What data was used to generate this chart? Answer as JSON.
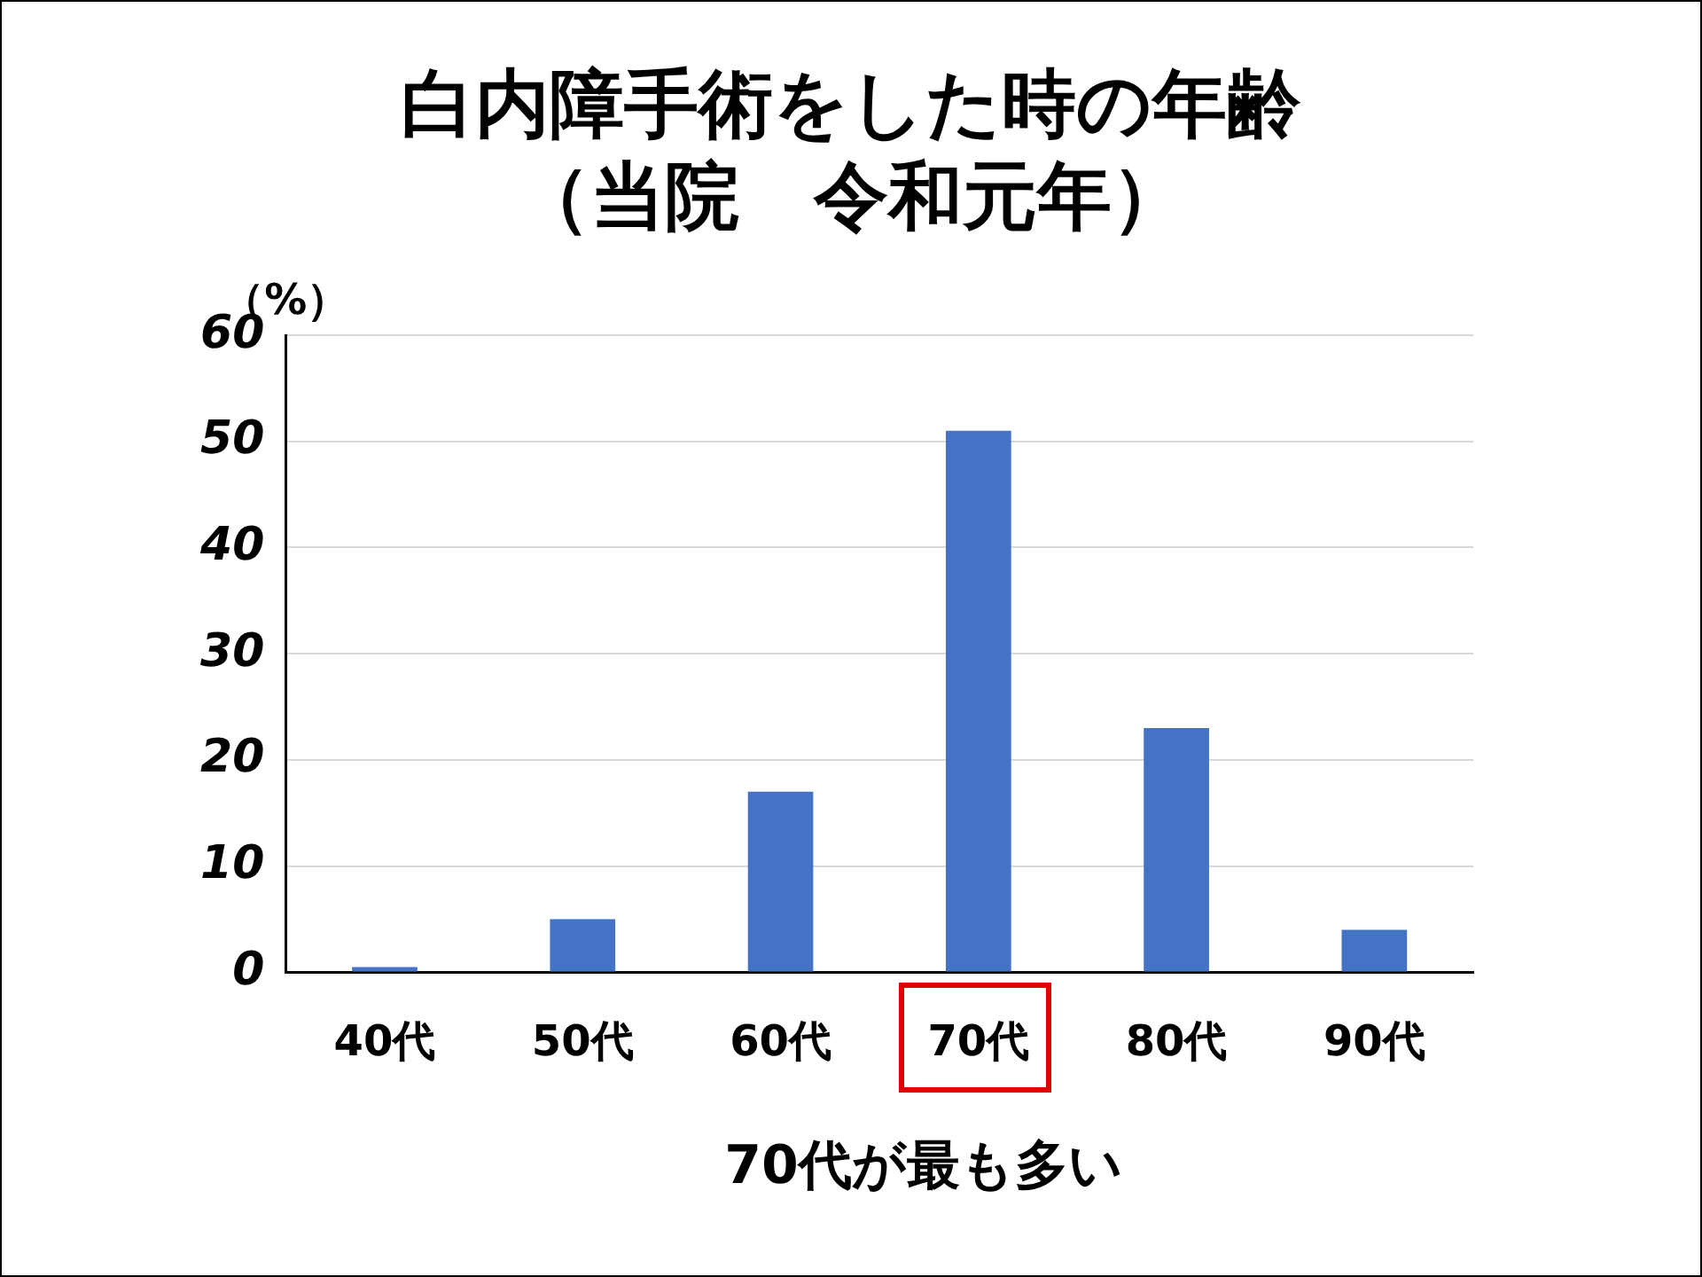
{
  "chart_data": {
    "type": "bar",
    "title": "白内障手術をした時の年齢",
    "subtitle": "（当院　令和元年）",
    "ylabel": "（%）",
    "categories": [
      "40代",
      "50代",
      "60代",
      "70代",
      "80代",
      "90代"
    ],
    "values": [
      0.5,
      5,
      17,
      51,
      23,
      4
    ],
    "color": "#4472c4",
    "ylim": [
      0,
      60
    ],
    "yticks": [
      0,
      10,
      20,
      30,
      40,
      50,
      60
    ],
    "grid": "y",
    "legend": false,
    "annotations": [
      "70代が最も多い"
    ]
  }
}
